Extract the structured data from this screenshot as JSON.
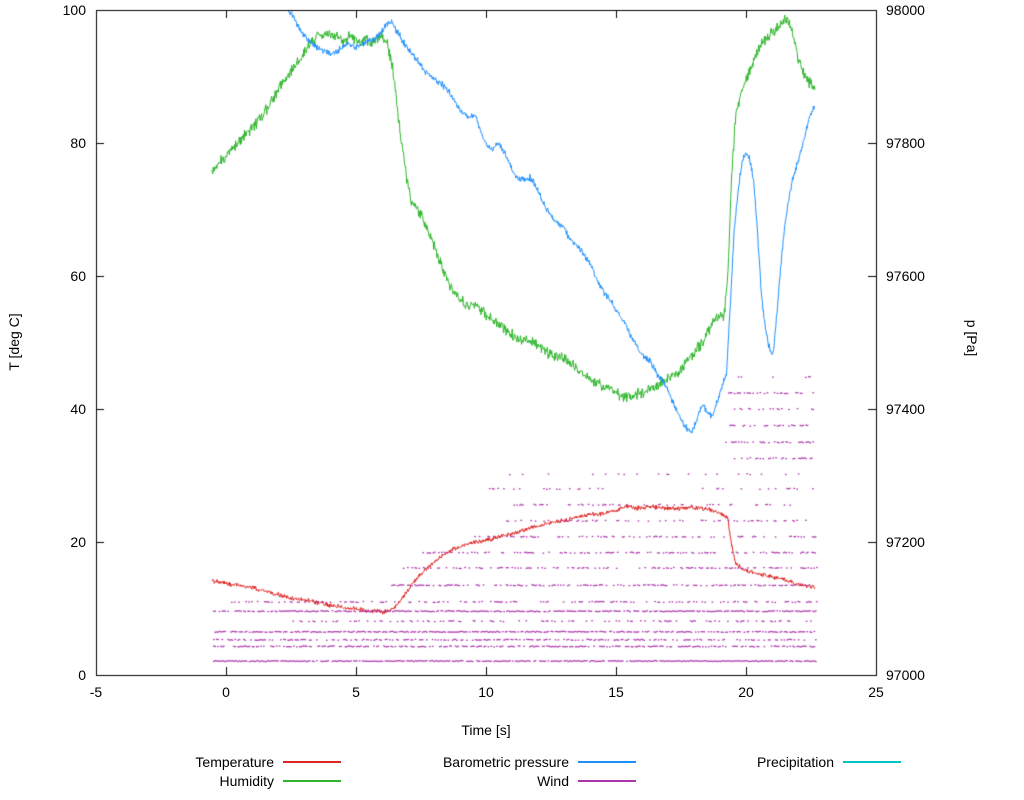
{
  "figure": {
    "background": "#ffffff"
  },
  "chart_data": {
    "type": "line",
    "title": "",
    "xlabel": "Time [s]",
    "ylabel_left": "T [deg C]",
    "ylabel_right": "p [Pa]",
    "xlim": [
      -5,
      25
    ],
    "ylim_left": [
      0,
      100
    ],
    "ylim_right": [
      97000,
      98000
    ],
    "x_ticks": [
      -5,
      0,
      5,
      10,
      15,
      20,
      25
    ],
    "y_ticks_left": [
      0,
      20,
      40,
      60,
      80,
      100
    ],
    "y_ticks_right": [
      97000,
      97200,
      97400,
      97600,
      97800,
      98000
    ],
    "grid": false,
    "legend_position": "bottom",
    "series": [
      {
        "name": "Temperature",
        "color": "#dd2222",
        "axis": "left",
        "style": "line",
        "noise": 0.4,
        "points": [
          [
            -0.55,
            14.2
          ],
          [
            0,
            13.8
          ],
          [
            0.5,
            13.4
          ],
          [
            1,
            13.1
          ],
          [
            1.5,
            12.6
          ],
          [
            2,
            12.1
          ],
          [
            2.5,
            11.6
          ],
          [
            3,
            11.3
          ],
          [
            3.5,
            10.9
          ],
          [
            4,
            10.5
          ],
          [
            4.5,
            10.1
          ],
          [
            5,
            9.9
          ],
          [
            5.5,
            9.7
          ],
          [
            6,
            9.5
          ],
          [
            6.3,
            9.6
          ],
          [
            6.6,
            10.6
          ],
          [
            7,
            12.8
          ],
          [
            7.4,
            14.8
          ],
          [
            7.8,
            16.3
          ],
          [
            8.2,
            17.6
          ],
          [
            8.6,
            18.7
          ],
          [
            9,
            19.3
          ],
          [
            9.4,
            19.8
          ],
          [
            9.8,
            20.1
          ],
          [
            10.2,
            20.4
          ],
          [
            10.6,
            20.9
          ],
          [
            11,
            21.2
          ],
          [
            11.4,
            21.7
          ],
          [
            11.8,
            22.2
          ],
          [
            12.2,
            22.6
          ],
          [
            12.6,
            23
          ],
          [
            13,
            23.2
          ],
          [
            13.5,
            23.7
          ],
          [
            14,
            24.1
          ],
          [
            14.5,
            24.3
          ],
          [
            15,
            24.7
          ],
          [
            15.4,
            25.4
          ],
          [
            15.8,
            25.1
          ],
          [
            16.2,
            25.3
          ],
          [
            16.6,
            25.2
          ],
          [
            17,
            25.1
          ],
          [
            17.4,
            25
          ],
          [
            17.8,
            25.2
          ],
          [
            18.2,
            25.1
          ],
          [
            18.6,
            24.9
          ],
          [
            19,
            24.4
          ],
          [
            19.3,
            23.6
          ],
          [
            19.45,
            19.5
          ],
          [
            19.6,
            16.8
          ],
          [
            19.8,
            16.1
          ],
          [
            20.2,
            15.5
          ],
          [
            20.6,
            15.1
          ],
          [
            21,
            14.8
          ],
          [
            21.4,
            14.4
          ],
          [
            21.8,
            13.9
          ],
          [
            22.2,
            13.5
          ],
          [
            22.65,
            13.2
          ]
        ]
      },
      {
        "name": "Humidity",
        "color": "#2eb52c",
        "axis": "left",
        "style": "line",
        "noise": 1.0,
        "points": [
          [
            -0.55,
            76
          ],
          [
            0,
            78
          ],
          [
            0.5,
            80.2
          ],
          [
            1,
            82.2
          ],
          [
            1.5,
            84.6
          ],
          [
            2,
            88
          ],
          [
            2.5,
            91
          ],
          [
            3,
            93.6
          ],
          [
            3.3,
            95.4
          ],
          [
            3.6,
            96.3
          ],
          [
            3.9,
            96.6
          ],
          [
            4.2,
            96
          ],
          [
            4.5,
            95.4
          ],
          [
            4.8,
            96
          ],
          [
            5.1,
            95.2
          ],
          [
            5.4,
            95.6
          ],
          [
            5.7,
            95.2
          ],
          [
            6,
            96.2
          ],
          [
            6.2,
            95
          ],
          [
            6.4,
            91.5
          ],
          [
            6.6,
            85
          ],
          [
            6.8,
            78.5
          ],
          [
            7,
            73.5
          ],
          [
            7.2,
            70.5
          ],
          [
            7.5,
            69.2
          ],
          [
            7.8,
            66.5
          ],
          [
            8.1,
            63.5
          ],
          [
            8.4,
            60.5
          ],
          [
            8.7,
            58
          ],
          [
            9,
            56.5
          ],
          [
            9.3,
            55.2
          ],
          [
            9.6,
            55.8
          ],
          [
            10,
            54.2
          ],
          [
            10.5,
            52.8
          ],
          [
            11,
            51.2
          ],
          [
            11.5,
            50.2
          ],
          [
            12,
            49.6
          ],
          [
            12.5,
            48.2
          ],
          [
            13,
            47.6
          ],
          [
            13.5,
            46
          ],
          [
            14,
            44.6
          ],
          [
            14.5,
            43.4
          ],
          [
            15,
            42.4
          ],
          [
            15.4,
            41.8
          ],
          [
            15.8,
            42.2
          ],
          [
            16.2,
            42.8
          ],
          [
            16.6,
            43.6
          ],
          [
            17,
            44.6
          ],
          [
            17.5,
            46
          ],
          [
            18,
            48.4
          ],
          [
            18.4,
            50.5
          ],
          [
            18.8,
            53.5
          ],
          [
            19,
            54.2
          ],
          [
            19.15,
            53.8
          ],
          [
            19.3,
            60
          ],
          [
            19.45,
            75
          ],
          [
            19.6,
            84
          ],
          [
            19.8,
            87.5
          ],
          [
            20,
            89.5
          ],
          [
            20.3,
            92.5
          ],
          [
            20.6,
            95
          ],
          [
            21,
            96.5
          ],
          [
            21.3,
            97.5
          ],
          [
            21.55,
            98.8
          ],
          [
            21.8,
            96.5
          ],
          [
            22,
            93
          ],
          [
            22.2,
            90.5
          ],
          [
            22.45,
            89
          ],
          [
            22.65,
            88
          ]
        ]
      },
      {
        "name": "Barometric pressure",
        "color": "#1f8ffb",
        "axis": "right",
        "style": "line",
        "noise": 6,
        "points": [
          [
            2.35,
            98005
          ],
          [
            2.6,
            97988
          ],
          [
            2.9,
            97968
          ],
          [
            3.2,
            97952
          ],
          [
            3.5,
            97944
          ],
          [
            3.8,
            97938
          ],
          [
            4.1,
            97934
          ],
          [
            4.4,
            97941
          ],
          [
            4.7,
            97950
          ],
          [
            5,
            97944
          ],
          [
            5.3,
            97950
          ],
          [
            5.6,
            97956
          ],
          [
            5.9,
            97962
          ],
          [
            6.1,
            97974
          ],
          [
            6.3,
            97984
          ],
          [
            6.5,
            97972
          ],
          [
            6.7,
            97960
          ],
          [
            7,
            97940
          ],
          [
            7.3,
            97928
          ],
          [
            7.6,
            97910
          ],
          [
            8,
            97898
          ],
          [
            8.3,
            97888
          ],
          [
            8.6,
            97876
          ],
          [
            9,
            97850
          ],
          [
            9.3,
            97838
          ],
          [
            9.6,
            97842
          ],
          [
            9.9,
            97806
          ],
          [
            10.2,
            97790
          ],
          [
            10.5,
            97802
          ],
          [
            10.8,
            97778
          ],
          [
            11.1,
            97752
          ],
          [
            11.4,
            97744
          ],
          [
            11.7,
            97748
          ],
          [
            12,
            97730
          ],
          [
            12.3,
            97702
          ],
          [
            12.6,
            97684
          ],
          [
            13,
            97672
          ],
          [
            13.3,
            97652
          ],
          [
            13.6,
            97642
          ],
          [
            14,
            97618
          ],
          [
            14.3,
            97592
          ],
          [
            14.6,
            97572
          ],
          [
            15,
            97550
          ],
          [
            15.3,
            97532
          ],
          [
            15.6,
            97508
          ],
          [
            16,
            97482
          ],
          [
            16.3,
            97472
          ],
          [
            16.6,
            97452
          ],
          [
            17,
            97430
          ],
          [
            17.3,
            97400
          ],
          [
            17.6,
            97376
          ],
          [
            17.9,
            97366
          ],
          [
            18.1,
            97382
          ],
          [
            18.3,
            97406
          ],
          [
            18.5,
            97396
          ],
          [
            18.7,
            97388
          ],
          [
            18.9,
            97412
          ],
          [
            19.1,
            97438
          ],
          [
            19.25,
            97452
          ],
          [
            19.4,
            97560
          ],
          [
            19.55,
            97670
          ],
          [
            19.7,
            97730
          ],
          [
            19.85,
            97772
          ],
          [
            20,
            97788
          ],
          [
            20.15,
            97775
          ],
          [
            20.3,
            97740
          ],
          [
            20.45,
            97660
          ],
          [
            20.6,
            97570
          ],
          [
            20.75,
            97520
          ],
          [
            20.9,
            97492
          ],
          [
            21.05,
            97482
          ],
          [
            21.2,
            97548
          ],
          [
            21.35,
            97620
          ],
          [
            21.5,
            97678
          ],
          [
            21.65,
            97716
          ],
          [
            21.8,
            97748
          ],
          [
            22,
            97772
          ],
          [
            22.2,
            97800
          ],
          [
            22.4,
            97834
          ],
          [
            22.65,
            97858
          ]
        ]
      },
      {
        "name": "Wind",
        "color": "#ab35ab",
        "axis": "left",
        "style": "dashes",
        "bands": [
          [
            2.1,
            -0.5,
            22.7,
            0.9
          ],
          [
            4.3,
            -0.5,
            22.7,
            0.65
          ],
          [
            5.3,
            -0.5,
            22.7,
            0.5
          ],
          [
            6.5,
            -0.5,
            22.7,
            0.8
          ],
          [
            8.1,
            2.5,
            22.7,
            0.25
          ],
          [
            9.6,
            -0.5,
            22.7,
            0.8
          ],
          [
            11.0,
            -0.3,
            22.7,
            0.3
          ],
          [
            13.5,
            6.3,
            22.7,
            0.55
          ],
          [
            16.1,
            6.8,
            22.7,
            0.45
          ],
          [
            18.4,
            7.5,
            22.7,
            0.4
          ],
          [
            20.8,
            9.5,
            22.7,
            0.3
          ],
          [
            23.2,
            10.5,
            22.7,
            0.28
          ],
          [
            25.6,
            11,
            22.7,
            0.22
          ],
          [
            28,
            10,
            22.7,
            0.14
          ],
          [
            30.2,
            10.5,
            22.7,
            0.1
          ],
          [
            32.6,
            19.2,
            22.6,
            0.45
          ],
          [
            35,
            19.2,
            22.6,
            0.42
          ],
          [
            37.5,
            19.2,
            22.6,
            0.38
          ],
          [
            40,
            19.2,
            22.6,
            0.32
          ],
          [
            42.4,
            19.2,
            22.6,
            0.3
          ],
          [
            44.8,
            19.3,
            22.5,
            0.25
          ]
        ]
      },
      {
        "name": "Precipitation",
        "color": "#00c4c4",
        "axis": "left",
        "style": "line",
        "noise": 0,
        "points": []
      }
    ],
    "legend": [
      {
        "label": "Temperature",
        "series": "Temperature",
        "row": 0,
        "col": 0
      },
      {
        "label": "Humidity",
        "series": "Humidity",
        "row": 1,
        "col": 0
      },
      {
        "label": "Barometric pressure",
        "series": "Barometric pressure",
        "row": 0,
        "col": 1
      },
      {
        "label": "Wind",
        "series": "Wind",
        "row": 1,
        "col": 1
      },
      {
        "label": "Precipitation",
        "series": "Precipitation",
        "row": 0,
        "col": 2
      }
    ]
  }
}
